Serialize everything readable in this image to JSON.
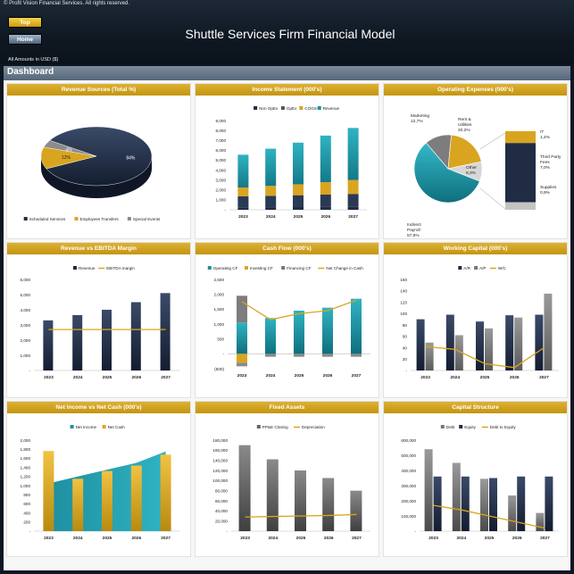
{
  "header": {
    "copyright": "© Profit Vision Financial Services. All rights reserved.",
    "top_button": "Top",
    "home_button": "Home",
    "title": "Shuttle Services Firm Financial Model",
    "amounts_note": "All Amounts in  USD ($)"
  },
  "dashboard": {
    "title": "Dashboard"
  },
  "colors": {
    "navy": "#1f2c44",
    "gold": "#d9a520",
    "teal": "#1e8fa0",
    "grey": "#7a7a7a",
    "lightgrey": "#bdbdbd",
    "darkgrey": "#4a4a4a"
  },
  "chart_data": [
    {
      "id": "revenue-sources",
      "type": "pie",
      "title": "Revenue Sources (Total %)",
      "slices": [
        {
          "name": "Scheduled Services",
          "value": 84,
          "label": "84%"
        },
        {
          "name": "Employees Transfers",
          "value": 12,
          "label": "12%"
        },
        {
          "name": "Special Events",
          "value": 4,
          "label": "4%"
        }
      ]
    },
    {
      "id": "income-statement",
      "type": "bar",
      "title": "Income Statement (000's)",
      "categories": [
        "2023",
        "2024",
        "2025",
        "2026",
        "2027"
      ],
      "series": [
        {
          "name": "Non OpEx",
          "values": [
            250,
            260,
            270,
            280,
            300
          ]
        },
        {
          "name": "OpEx",
          "values": [
            1100,
            1150,
            1200,
            1250,
            1300
          ]
        },
        {
          "name": "COGS",
          "values": [
            900,
            1000,
            1100,
            1250,
            1400
          ]
        },
        {
          "name": "Revenue",
          "values": [
            3300,
            3750,
            4200,
            4700,
            5250
          ]
        }
      ],
      "ylim": [
        0,
        9000
      ],
      "yticks": [
        "-",
        "1,000",
        "2,000",
        "3,000",
        "4,000",
        "5,000",
        "6,000",
        "7,000",
        "8,000",
        "9,000"
      ]
    },
    {
      "id": "operating-expenses",
      "type": "pie",
      "title": "Operating Expenses (000's)",
      "slices": [
        {
          "name": "Indirect Payroll",
          "value": 57.8,
          "label": "57,8%"
        },
        {
          "name": "Marketing",
          "value": 12.7,
          "label": "12,7%"
        },
        {
          "name": "Rent & Utilities",
          "value": 20.2,
          "label": "20,2%"
        },
        {
          "name": "Other",
          "value": 9.3,
          "label": "9,3%"
        }
      ],
      "breakdown": [
        {
          "name": "IT",
          "value": 1.4,
          "label": "1,4%"
        },
        {
          "name": "Third Party Fees",
          "value": 7.0,
          "label": "7,0%"
        },
        {
          "name": "Supplies",
          "value": 0.9,
          "label": "0,9%"
        }
      ]
    },
    {
      "id": "revenue-ebitda",
      "type": "bar",
      "title": "Revenue vs EBITDA Margin",
      "categories": [
        "2023",
        "2024",
        "2025",
        "2026",
        "2027"
      ],
      "series": [
        {
          "name": "Revenue",
          "values": [
            3300,
            3650,
            4000,
            4500,
            5100
          ]
        },
        {
          "name": "EBITDA margin",
          "values": [
            2700,
            2700,
            2700,
            2700,
            2700
          ]
        }
      ],
      "ylim": [
        0,
        6000
      ],
      "yticks": [
        "-",
        "1,000",
        "2,000",
        "3,000",
        "4,000",
        "5,000",
        "6,000"
      ]
    },
    {
      "id": "cash-flow",
      "type": "bar",
      "title": "Cash Flow (000's)",
      "categories": [
        "2023",
        "2024",
        "2025",
        "2026",
        "2027"
      ],
      "series": [
        {
          "name": "Operating CF",
          "values": [
            1050,
            1200,
            1450,
            1550,
            1850
          ]
        },
        {
          "name": "Investing CF",
          "values": [
            -300,
            0,
            0,
            0,
            0
          ]
        },
        {
          "name": "Financing CF",
          "values": [
            -120,
            -100,
            -100,
            -100,
            -100
          ]
        },
        {
          "name": "Net Change in Cash",
          "values": [
            1750,
            1150,
            1350,
            1450,
            1800
          ]
        }
      ],
      "extra_positive": [
        900,
        0,
        0,
        0,
        0
      ],
      "ylim": [
        -500,
        2500
      ],
      "yticks": [
        "(500)",
        "-",
        "500",
        "1,000",
        "1,500",
        "2,000",
        "2,500"
      ]
    },
    {
      "id": "working-capital",
      "type": "bar",
      "title": "Working Capital (000's)",
      "categories": [
        "2023",
        "2024",
        "2025",
        "2026",
        "2027"
      ],
      "series": [
        {
          "name": "A/R",
          "values": [
            90,
            98,
            86,
            97,
            98
          ]
        },
        {
          "name": "A/P",
          "values": [
            49,
            62,
            74,
            93,
            135
          ]
        },
        {
          "name": "W/C",
          "values": [
            42,
            37,
            12,
            5,
            40
          ]
        }
      ],
      "ylim": [
        0,
        160
      ],
      "yticks": [
        "-",
        "20",
        "40",
        "60",
        "80",
        "100",
        "120",
        "140",
        "160"
      ]
    },
    {
      "id": "net-income-cash",
      "type": "area",
      "title": "Net Income vs Net Cash (000's)",
      "categories": [
        "2023",
        "2024",
        "2025",
        "2026",
        "2027"
      ],
      "series": [
        {
          "name": "Net Income",
          "values": [
            1050,
            1200,
            1350,
            1500,
            1750
          ]
        },
        {
          "name": "Net Cash",
          "values": [
            1760,
            1150,
            1320,
            1440,
            1680
          ]
        }
      ],
      "ylim": [
        0,
        2000
      ],
      "yticks": [
        "-",
        "200",
        "400",
        "600",
        "800",
        "1,000",
        "1,200",
        "1,400",
        "1,600",
        "1,800",
        "2,000"
      ]
    },
    {
      "id": "fixed-assets",
      "type": "bar",
      "title": "Fixed Assets",
      "categories": [
        "2023",
        "2024",
        "2025",
        "2026",
        "2027"
      ],
      "series": [
        {
          "name": "PP&E Closing",
          "values": [
            170000,
            142000,
            120000,
            105000,
            80000
          ]
        },
        {
          "name": "Depreciation",
          "values": [
            28000,
            29000,
            30000,
            31000,
            33000
          ]
        }
      ],
      "ylim": [
        0,
        180000
      ],
      "yticks": [
        "-",
        "20,000",
        "40,000",
        "60,000",
        "80,000",
        "100,000",
        "120,000",
        "140,000",
        "160,000",
        "180,000"
      ]
    },
    {
      "id": "capital-structure",
      "type": "bar",
      "title": "Capital Structure",
      "categories": [
        "2023",
        "2024",
        "2025",
        "2026",
        "2027"
      ],
      "series": [
        {
          "name": "Debt",
          "values": [
            540000,
            450000,
            345000,
            235000,
            120000
          ]
        },
        {
          "name": "Equity",
          "values": [
            360000,
            360000,
            350000,
            360000,
            360000
          ]
        },
        {
          "name": "Debt to Equity",
          "values": [
            170000,
            140000,
            100000,
            60000,
            20000
          ]
        }
      ],
      "ylim": [
        0,
        600000
      ],
      "yticks": [
        "-",
        "100,000",
        "200,000",
        "300,000",
        "400,000",
        "500,000",
        "600,000"
      ]
    }
  ]
}
